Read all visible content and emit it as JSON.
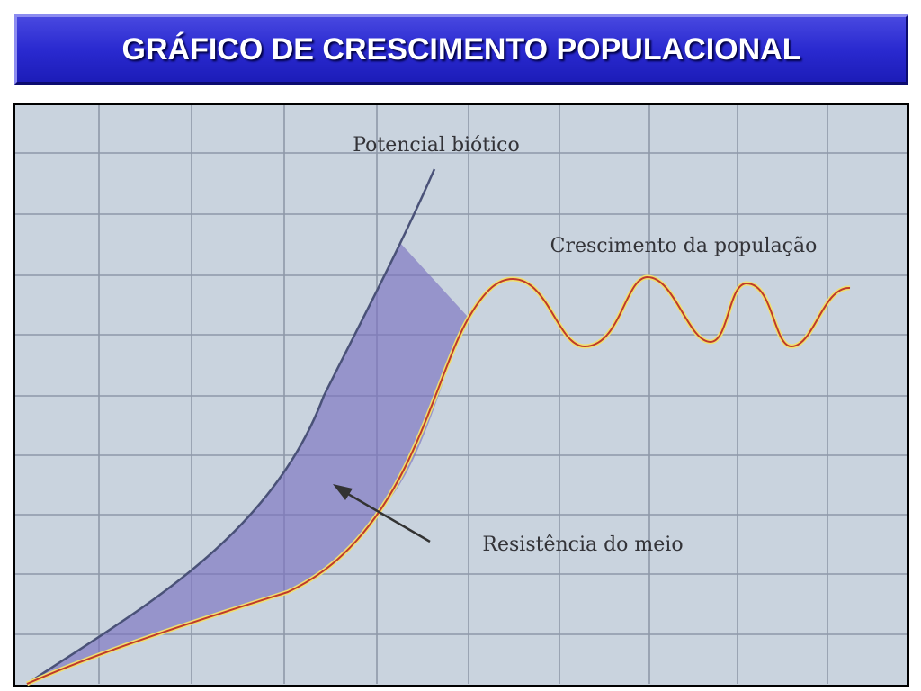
{
  "header": {
    "title": "GRÁFICO DE CRESCIMENTO POPULACIONAL"
  },
  "diagram": {
    "labels": {
      "biotic_potential": "Potencial biótico",
      "population_growth": "Crescimento da população",
      "environmental_resistance": "Resistência do meio"
    }
  }
}
